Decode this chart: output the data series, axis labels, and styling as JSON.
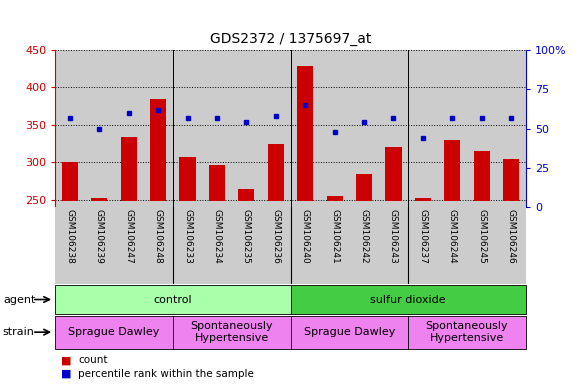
{
  "title": "GDS2372 / 1375697_at",
  "samples": [
    "GSM106238",
    "GSM106239",
    "GSM106247",
    "GSM106248",
    "GSM106233",
    "GSM106234",
    "GSM106235",
    "GSM106236",
    "GSM106240",
    "GSM106241",
    "GSM106242",
    "GSM106243",
    "GSM106237",
    "GSM106244",
    "GSM106245",
    "GSM106246"
  ],
  "counts": [
    301,
    253,
    334,
    385,
    307,
    296,
    265,
    325,
    428,
    255,
    284,
    320,
    253,
    330,
    315,
    305
  ],
  "percentiles": [
    57,
    50,
    60,
    62,
    57,
    57,
    54,
    58,
    65,
    48,
    54,
    57,
    44,
    57,
    57,
    57
  ],
  "ylim_left": [
    240,
    450
  ],
  "ylim_right": [
    0,
    100
  ],
  "yticks_left": [
    250,
    300,
    350,
    400,
    450
  ],
  "yticks_right": [
    0,
    25,
    50,
    75,
    100
  ],
  "bar_color": "#cc0000",
  "marker_color": "#0000cc",
  "baseline": 248,
  "separator_after": [
    3,
    7,
    11
  ],
  "groups_agent": [
    {
      "label": "control",
      "start": 0,
      "end": 8,
      "color": "#aaffaa"
    },
    {
      "label": "sulfur dioxide",
      "start": 8,
      "end": 16,
      "color": "#44cc44"
    }
  ],
  "groups_strain": [
    {
      "label": "Sprague Dawley",
      "start": 0,
      "end": 4,
      "color": "#ee82ee"
    },
    {
      "label": "Spontaneously\nHypertensive",
      "start": 4,
      "end": 8,
      "color": "#ee82ee"
    },
    {
      "label": "Sprague Dawley",
      "start": 8,
      "end": 12,
      "color": "#ee82ee"
    },
    {
      "label": "Spontaneously\nHypertensive",
      "start": 12,
      "end": 16,
      "color": "#ee82ee"
    }
  ],
  "tick_fontsize": 8,
  "title_fontsize": 10,
  "bar_bg": "#cccccc",
  "xtick_bg": "#cccccc",
  "legend_count_color": "#cc0000",
  "legend_pct_color": "#0000cc"
}
